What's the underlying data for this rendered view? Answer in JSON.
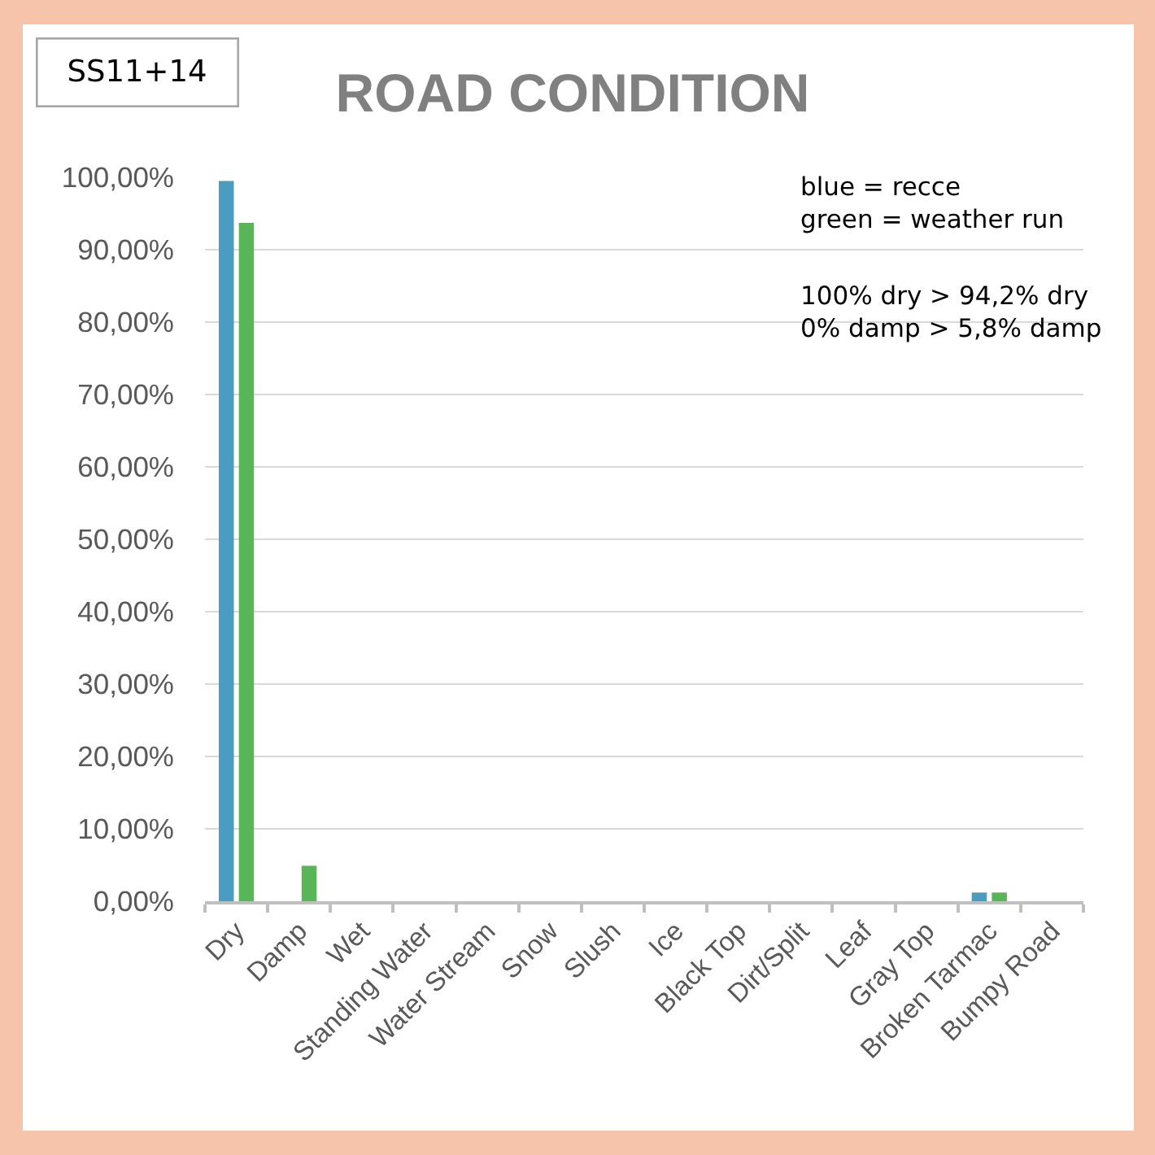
{
  "chart_data": {
    "type": "bar",
    "title": "ROAD CONDITION",
    "categories": [
      "Dry",
      "Damp",
      "Wet",
      "Standing Water",
      "Water Stream",
      "Snow",
      "Slush",
      "Ice",
      "Black Top",
      "Dirt/Split",
      "Leaf",
      "Gray Top",
      "Broken Tarmac",
      "Bumpy Road"
    ],
    "series": [
      {
        "color": "#4a9cc0",
        "values": [
          99.5,
          0,
          0,
          0,
          0,
          0,
          0,
          0,
          0,
          0,
          0,
          0,
          1.2,
          0
        ]
      },
      {
        "color": "#58b558",
        "values": [
          93.7,
          4.9,
          0,
          0,
          0,
          0,
          0,
          0,
          0,
          0,
          0,
          0,
          1.2,
          0
        ]
      }
    ],
    "ylim": [
      0,
      100
    ],
    "yticks": [
      {
        "value": 0,
        "label": "0,00%"
      },
      {
        "value": 10,
        "label": "10,00%"
      },
      {
        "value": 20,
        "label": "20,00%"
      },
      {
        "value": 30,
        "label": "30,00%"
      },
      {
        "value": 40,
        "label": "40,00%"
      },
      {
        "value": 50,
        "label": "50,00%"
      },
      {
        "value": 60,
        "label": "60,00%"
      },
      {
        "value": 70,
        "label": "70,00%"
      },
      {
        "value": 80,
        "label": "80,00%"
      },
      {
        "value": 90,
        "label": "90,00%"
      },
      {
        "value": 100,
        "label": "100,00%"
      }
    ],
    "grid": "y",
    "annotations": [
      "SS11+14",
      "blue = recce\ngreen = weather run",
      "100% dry > 94,2% dry\n0% damp > 5,8% damp"
    ]
  }
}
